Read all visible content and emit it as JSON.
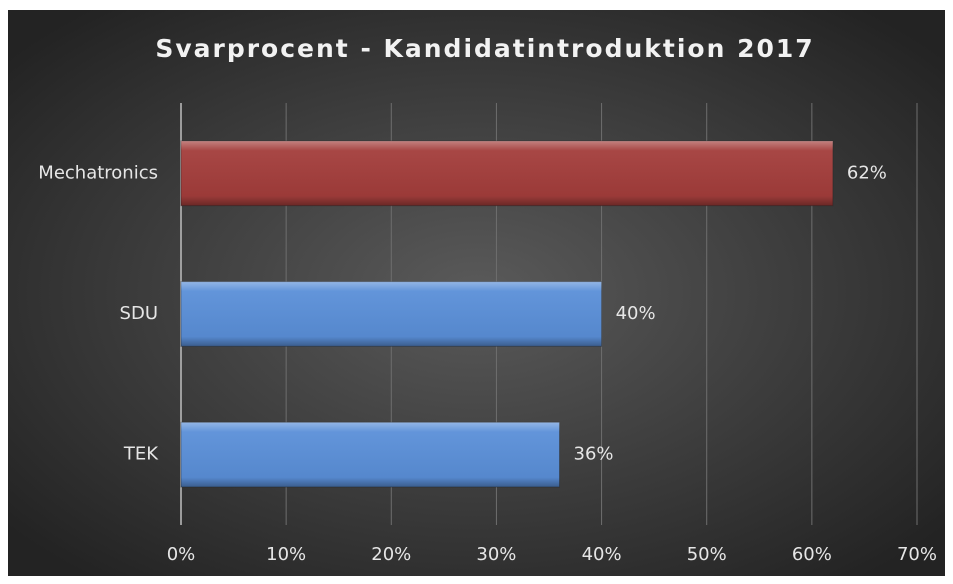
{
  "chart_data": {
    "type": "bar",
    "orientation": "horizontal",
    "title": "Svarprocent - Kandidatintroduktion 2017",
    "categories": [
      "Mechatronics",
      "SDU",
      "TEK"
    ],
    "values": [
      62,
      40,
      36
    ],
    "value_labels": [
      "62%",
      "40%",
      "36%"
    ],
    "colors": [
      "#a33d3b",
      "#5a8fd8",
      "#5a8fd8"
    ],
    "xlim": [
      0,
      70
    ],
    "xticks": [
      {
        "value": 0,
        "label": "0%"
      },
      {
        "value": 10,
        "label": "10%"
      },
      {
        "value": 20,
        "label": "20%"
      },
      {
        "value": 30,
        "label": "30%"
      },
      {
        "value": 40,
        "label": "40%"
      },
      {
        "value": 50,
        "label": "50%"
      },
      {
        "value": 60,
        "label": "60%"
      },
      {
        "value": 70,
        "label": "70%"
      }
    ],
    "grid": true
  }
}
